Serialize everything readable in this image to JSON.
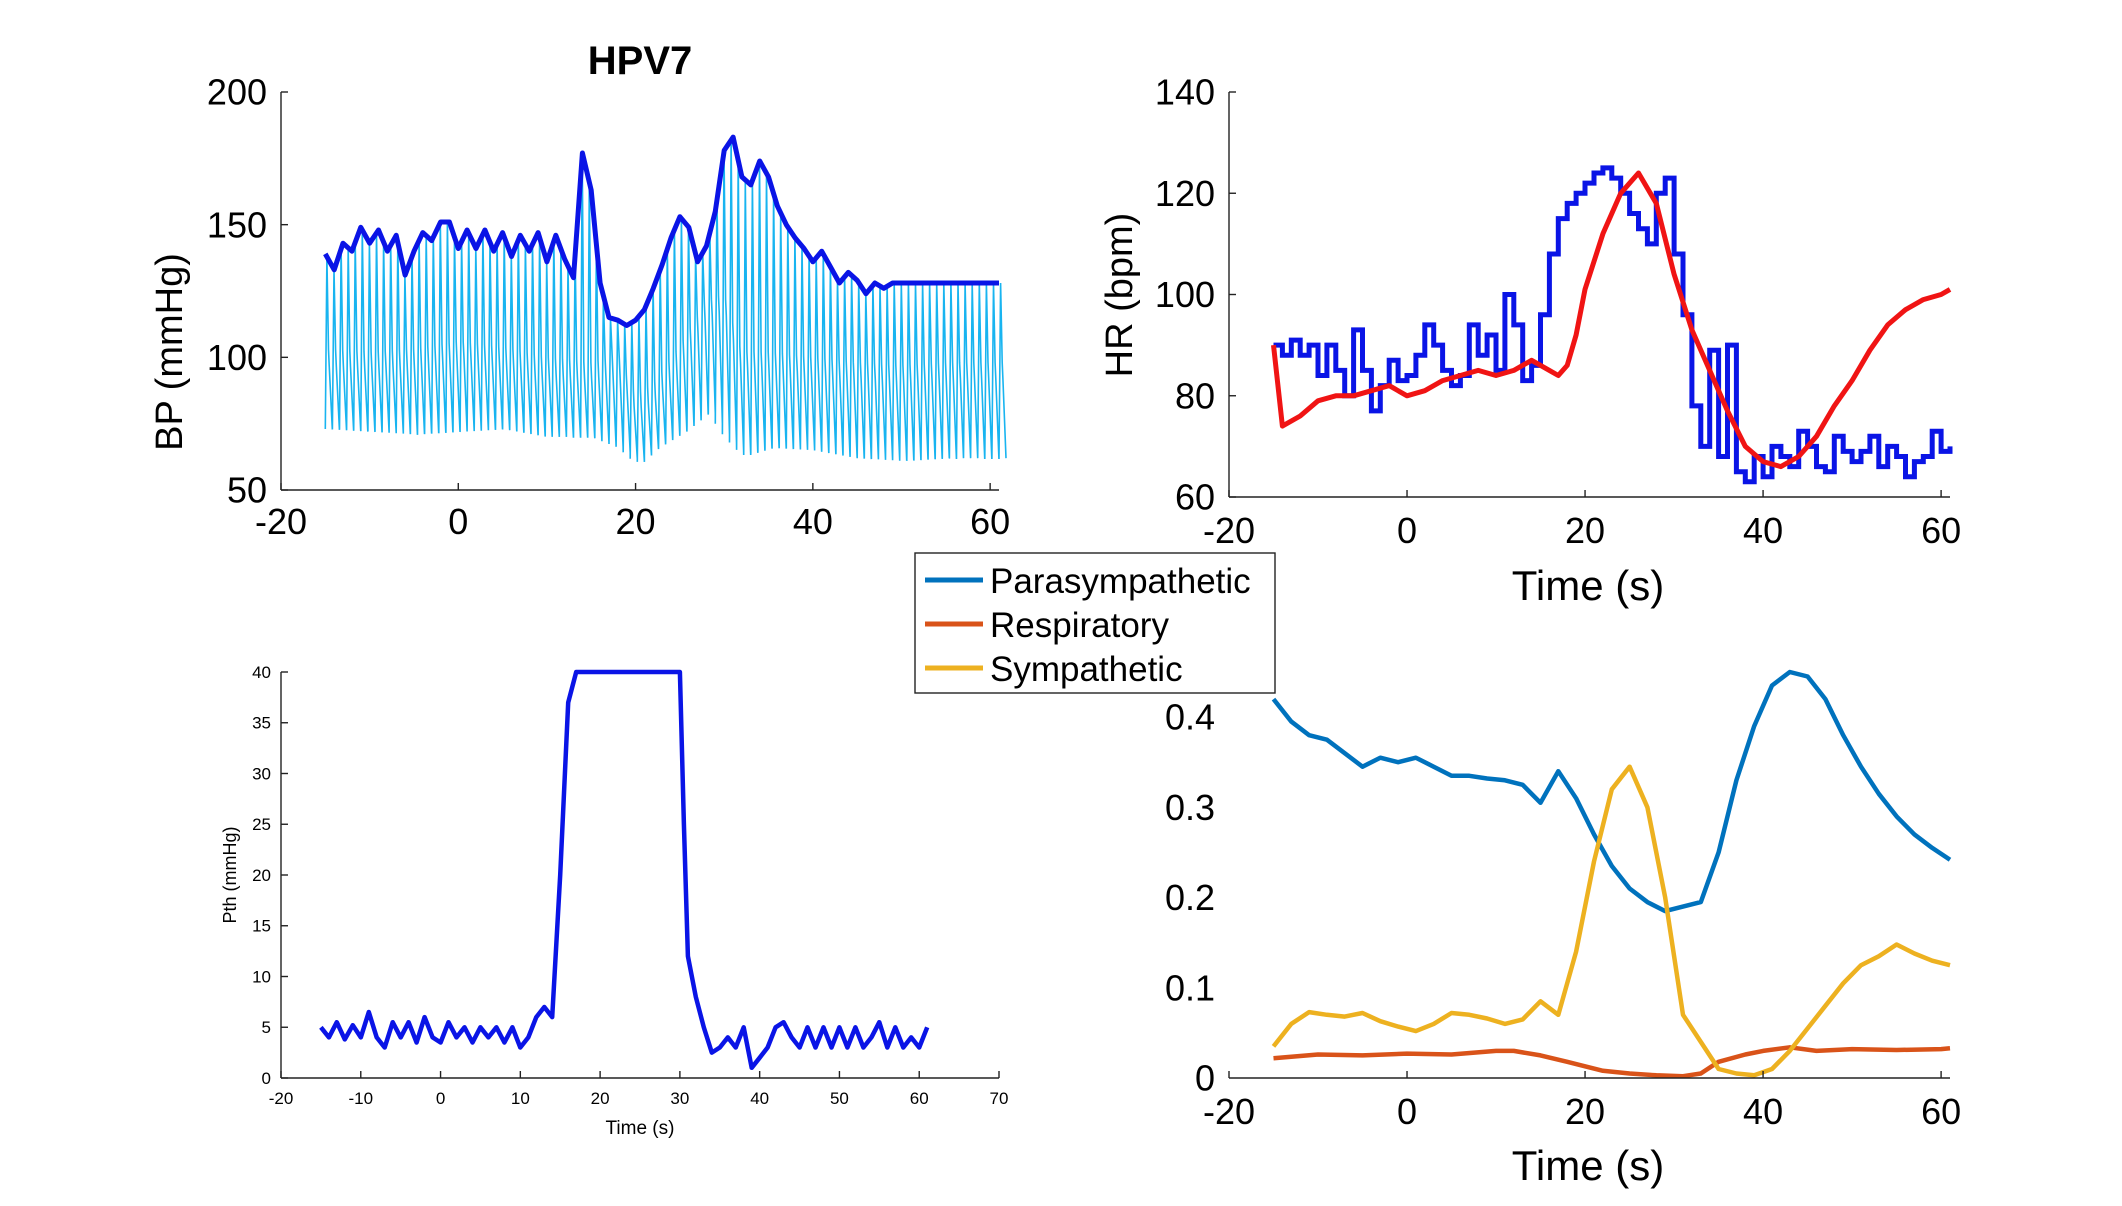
{
  "chart_data": [
    {
      "id": "bp",
      "type": "line",
      "title": "HPV7",
      "xlabel": "",
      "ylabel": "BP (mmHg)",
      "xlim": [
        -20,
        61
      ],
      "ylim": [
        50,
        200
      ],
      "xticks": [
        -20,
        0,
        20,
        40,
        60
      ],
      "xtick_labels": [
        "-20",
        "0",
        "20",
        "40",
        "60"
      ],
      "yticks": [
        50,
        100,
        150,
        200
      ],
      "ytick_labels": [
        "50",
        "100",
        "150",
        "200"
      ],
      "colors": {
        "raw": "#18b4f0",
        "envelope": "#0a14e6"
      },
      "series": [
        {
          "role": "envelope",
          "x": [
            -15,
            -14,
            -13,
            -12,
            -11,
            -10,
            -9,
            -8,
            -7,
            -6,
            -5,
            -4,
            -3,
            -2,
            -1,
            0,
            1,
            2,
            3,
            4,
            5,
            6,
            7,
            8,
            9,
            10,
            11,
            12,
            13,
            14,
            15,
            16,
            17,
            18,
            19,
            20,
            21,
            22,
            23,
            24,
            25,
            26,
            27,
            28,
            29,
            30,
            31,
            32,
            33,
            34,
            35,
            36,
            37,
            38,
            39,
            40,
            41,
            42,
            43,
            44,
            45,
            46,
            47,
            48,
            49,
            50,
            51,
            52,
            53,
            54,
            55,
            56,
            57,
            58,
            59,
            60,
            61
          ],
          "values": [
            139,
            133,
            143,
            140,
            149,
            143,
            148,
            140,
            146,
            131,
            140,
            147,
            144,
            151,
            151,
            141,
            148,
            141,
            148,
            140,
            147,
            138,
            146,
            140,
            147,
            136,
            146,
            137,
            130,
            177,
            163,
            128,
            115,
            114,
            112,
            114,
            118,
            126,
            135,
            145,
            153,
            149,
            136,
            142,
            155,
            178,
            183,
            168,
            165,
            174,
            168,
            157,
            150,
            145,
            141,
            136,
            140,
            134,
            128,
            132,
            129,
            124,
            128,
            126,
            128,
            128,
            128,
            128,
            128,
            128,
            128,
            128,
            128,
            128,
            128,
            128,
            128
          ]
        },
        {
          "role": "raw-min",
          "x": [
            -15,
            -10,
            -5,
            0,
            5,
            10,
            15,
            18,
            20,
            22,
            25,
            28,
            30,
            32,
            35,
            40,
            45,
            50,
            55,
            60
          ],
          "values": [
            73,
            72,
            71,
            72,
            73,
            70,
            70,
            66,
            60,
            66,
            72,
            80,
            70,
            63,
            66,
            65,
            62,
            61,
            62,
            62
          ]
        },
        {
          "role": "raw-mid",
          "x": [
            -15,
            -10,
            -5,
            0,
            5,
            10,
            15,
            18,
            20,
            22,
            25,
            28,
            30,
            32,
            35,
            40,
            45,
            50,
            55,
            60
          ],
          "values": [
            97,
            96,
            97,
            100,
            98,
            94,
            92,
            95,
            80,
            84,
            98,
            115,
            118,
            96,
            96,
            94,
            92,
            91,
            92,
            92
          ]
        }
      ]
    },
    {
      "id": "hr",
      "type": "line",
      "title": "",
      "xlabel": "Time (s)",
      "ylabel": "HR (bpm)",
      "xlim": [
        -20,
        61
      ],
      "ylim": [
        60,
        140
      ],
      "xticks": [
        -20,
        0,
        20,
        40,
        60
      ],
      "xtick_labels": [
        "-20",
        "0",
        "20",
        "40",
        "60"
      ],
      "yticks": [
        60,
        80,
        100,
        120,
        140
      ],
      "ytick_labels": [
        "60",
        "80",
        "100",
        "120",
        "140"
      ],
      "colors": {
        "measured": "#0a14e6",
        "model": "#f01414"
      },
      "series": [
        {
          "role": "measured",
          "step": true,
          "x": [
            -15,
            -14,
            -13,
            -12,
            -11,
            -10,
            -9,
            -8,
            -7,
            -6,
            -5,
            -4,
            -3,
            -2,
            -1,
            0,
            1,
            2,
            3,
            4,
            5,
            6,
            7,
            8,
            9,
            10,
            11,
            12,
            13,
            14,
            15,
            16,
            17,
            18,
            19,
            20,
            21,
            22,
            23,
            24,
            25,
            26,
            27,
            28,
            29,
            30,
            31,
            32,
            33,
            34,
            35,
            36,
            37,
            38,
            39,
            40,
            41,
            42,
            43,
            44,
            45,
            46,
            47,
            48,
            49,
            50,
            51,
            52,
            53,
            54,
            55,
            56,
            57,
            58,
            59,
            60,
            61
          ],
          "values": [
            90,
            88,
            91,
            88,
            90,
            84,
            90,
            85,
            80,
            93,
            85,
            77,
            82,
            87,
            83,
            84,
            88,
            94,
            90,
            85,
            82,
            84,
            94,
            88,
            92,
            85,
            100,
            94,
            83,
            86,
            96,
            108,
            115,
            118,
            120,
            122,
            124,
            125,
            123,
            120,
            116,
            113,
            110,
            120,
            123,
            108,
            96,
            78,
            70,
            89,
            68,
            90,
            65,
            63,
            68,
            64,
            70,
            68,
            66,
            73,
            70,
            66,
            65,
            72,
            69,
            67,
            69,
            72,
            66,
            70,
            68,
            64,
            67,
            68,
            73,
            69,
            70
          ]
        },
        {
          "role": "model",
          "step": false,
          "x": [
            -15,
            -14,
            -12,
            -10,
            -8,
            -6,
            -4,
            -2,
            0,
            2,
            4,
            6,
            8,
            10,
            12,
            14,
            16,
            17,
            18,
            19,
            20,
            22,
            24,
            26,
            28,
            30,
            32,
            34,
            36,
            38,
            40,
            42,
            44,
            46,
            48,
            50,
            52,
            54,
            56,
            58,
            60,
            61
          ],
          "values": [
            90,
            74,
            76,
            79,
            80,
            80,
            81,
            82,
            80,
            81,
            83,
            84,
            85,
            84,
            85,
            87,
            85,
            84,
            86,
            92,
            101,
            112,
            120,
            124,
            118,
            104,
            93,
            85,
            77,
            70,
            67,
            66,
            68,
            72,
            78,
            83,
            89,
            94,
            97,
            99,
            100,
            101
          ]
        }
      ]
    },
    {
      "id": "pth",
      "type": "line",
      "title": "",
      "xlabel": "Time (s)",
      "ylabel": "Pth (mmHg)",
      "xlim": [
        -20,
        70
      ],
      "ylim": [
        0,
        40
      ],
      "xticks": [
        -20,
        -10,
        0,
        10,
        20,
        30,
        40,
        50,
        60,
        70
      ],
      "xtick_labels": [
        "-20",
        "-10",
        "0",
        "10",
        "20",
        "30",
        "40",
        "50",
        "60",
        "70"
      ],
      "yticks": [
        0,
        5,
        10,
        15,
        20,
        25,
        30,
        35,
        40
      ],
      "ytick_labels": [
        "0",
        "5",
        "10",
        "15",
        "20",
        "25",
        "30",
        "35",
        "40"
      ],
      "colors": {
        "pth": "#0a14e6"
      },
      "series": [
        {
          "role": "pth",
          "x": [
            -15,
            -14,
            -13,
            -12,
            -11,
            -10,
            -9,
            -8,
            -7,
            -6,
            -5,
            -4,
            -3,
            -2,
            -1,
            0,
            1,
            2,
            3,
            4,
            5,
            6,
            7,
            8,
            9,
            10,
            11,
            12,
            13,
            14,
            15,
            16,
            17,
            18,
            20,
            25,
            30,
            30.5,
            31,
            32,
            33,
            34,
            35,
            36,
            37,
            38,
            39,
            40,
            41,
            42,
            43,
            44,
            45,
            46,
            47,
            48,
            49,
            50,
            51,
            52,
            53,
            54,
            55,
            56,
            57,
            58,
            59,
            60,
            61
          ],
          "values": [
            5,
            4,
            5.5,
            3.8,
            5.2,
            4,
            6.5,
            4,
            3,
            5.5,
            4,
            5.5,
            3.5,
            6,
            4,
            3.5,
            5.5,
            4,
            5,
            3.5,
            5,
            4,
            5,
            3.5,
            5,
            3,
            4,
            6,
            7,
            6,
            20,
            37,
            40,
            40,
            40,
            40,
            40,
            25,
            12,
            8,
            5,
            2.5,
            3,
            4,
            3,
            5,
            1,
            2,
            3,
            5,
            5.5,
            4,
            3,
            5,
            3,
            5,
            3,
            5,
            3,
            5,
            3,
            4,
            5.5,
            3,
            5,
            3,
            4,
            3,
            5
          ]
        }
      ]
    },
    {
      "id": "components",
      "type": "line",
      "title": "",
      "xlabel": "Time (s)",
      "ylabel": "",
      "xlim": [
        -20,
        61
      ],
      "ylim": [
        0,
        0.45
      ],
      "xticks": [
        -20,
        0,
        20,
        40,
        60
      ],
      "xtick_labels": [
        "-20",
        "0",
        "20",
        "40",
        "60"
      ],
      "yticks": [
        0,
        0.1,
        0.2,
        0.3,
        0.4
      ],
      "ytick_labels": [
        "0",
        "0.1",
        "0.2",
        "0.3",
        "0.4"
      ],
      "legend": {
        "placement": "top-left",
        "entries": [
          "Parasympathetic",
          "Respiratory",
          "Sympathetic"
        ]
      },
      "series": [
        {
          "name": "Parasympathetic",
          "color": "#0072bd",
          "x": [
            -15,
            -13,
            -11,
            -9,
            -7,
            -5,
            -3,
            -1,
            1,
            3,
            5,
            7,
            9,
            11,
            13,
            15,
            17,
            19,
            21,
            23,
            25,
            27,
            29,
            31,
            33,
            35,
            37,
            39,
            41,
            43,
            45,
            47,
            49,
            51,
            53,
            55,
            57,
            59,
            61
          ],
          "values": [
            0.42,
            0.395,
            0.38,
            0.375,
            0.36,
            0.345,
            0.355,
            0.35,
            0.355,
            0.345,
            0.335,
            0.335,
            0.332,
            0.33,
            0.325,
            0.305,
            0.34,
            0.31,
            0.27,
            0.235,
            0.21,
            0.195,
            0.185,
            0.19,
            0.195,
            0.25,
            0.33,
            0.39,
            0.435,
            0.45,
            0.445,
            0.42,
            0.38,
            0.345,
            0.315,
            0.29,
            0.27,
            0.255,
            0.242
          ]
        },
        {
          "name": "Respiratory",
          "color": "#d95319",
          "x": [
            -15,
            -10,
            -5,
            0,
            5,
            10,
            12,
            15,
            18,
            20,
            22,
            25,
            28,
            31,
            33,
            35,
            38,
            40,
            43,
            46,
            50,
            55,
            60,
            61
          ],
          "values": [
            0.022,
            0.026,
            0.025,
            0.027,
            0.026,
            0.03,
            0.03,
            0.025,
            0.018,
            0.013,
            0.008,
            0.005,
            0.003,
            0.002,
            0.005,
            0.018,
            0.026,
            0.03,
            0.034,
            0.03,
            0.032,
            0.031,
            0.032,
            0.033
          ]
        },
        {
          "name": "Sympathetic",
          "color": "#edb120",
          "x": [
            -15,
            -13,
            -11,
            -9,
            -7,
            -5,
            -3,
            -1,
            1,
            3,
            5,
            7,
            9,
            11,
            13,
            15,
            17,
            19,
            21,
            23,
            25,
            27,
            29,
            31,
            33,
            35,
            37,
            39,
            41,
            43,
            45,
            47,
            49,
            51,
            53,
            55,
            57,
            59,
            61
          ],
          "values": [
            0.035,
            0.06,
            0.073,
            0.07,
            0.068,
            0.072,
            0.063,
            0.057,
            0.052,
            0.06,
            0.072,
            0.07,
            0.066,
            0.06,
            0.065,
            0.085,
            0.07,
            0.14,
            0.24,
            0.32,
            0.345,
            0.3,
            0.2,
            0.07,
            0.04,
            0.01,
            0.005,
            0.003,
            0.01,
            0.03,
            0.055,
            0.08,
            0.105,
            0.125,
            0.135,
            0.148,
            0.138,
            0.13,
            0.125
          ]
        }
      ]
    }
  ]
}
